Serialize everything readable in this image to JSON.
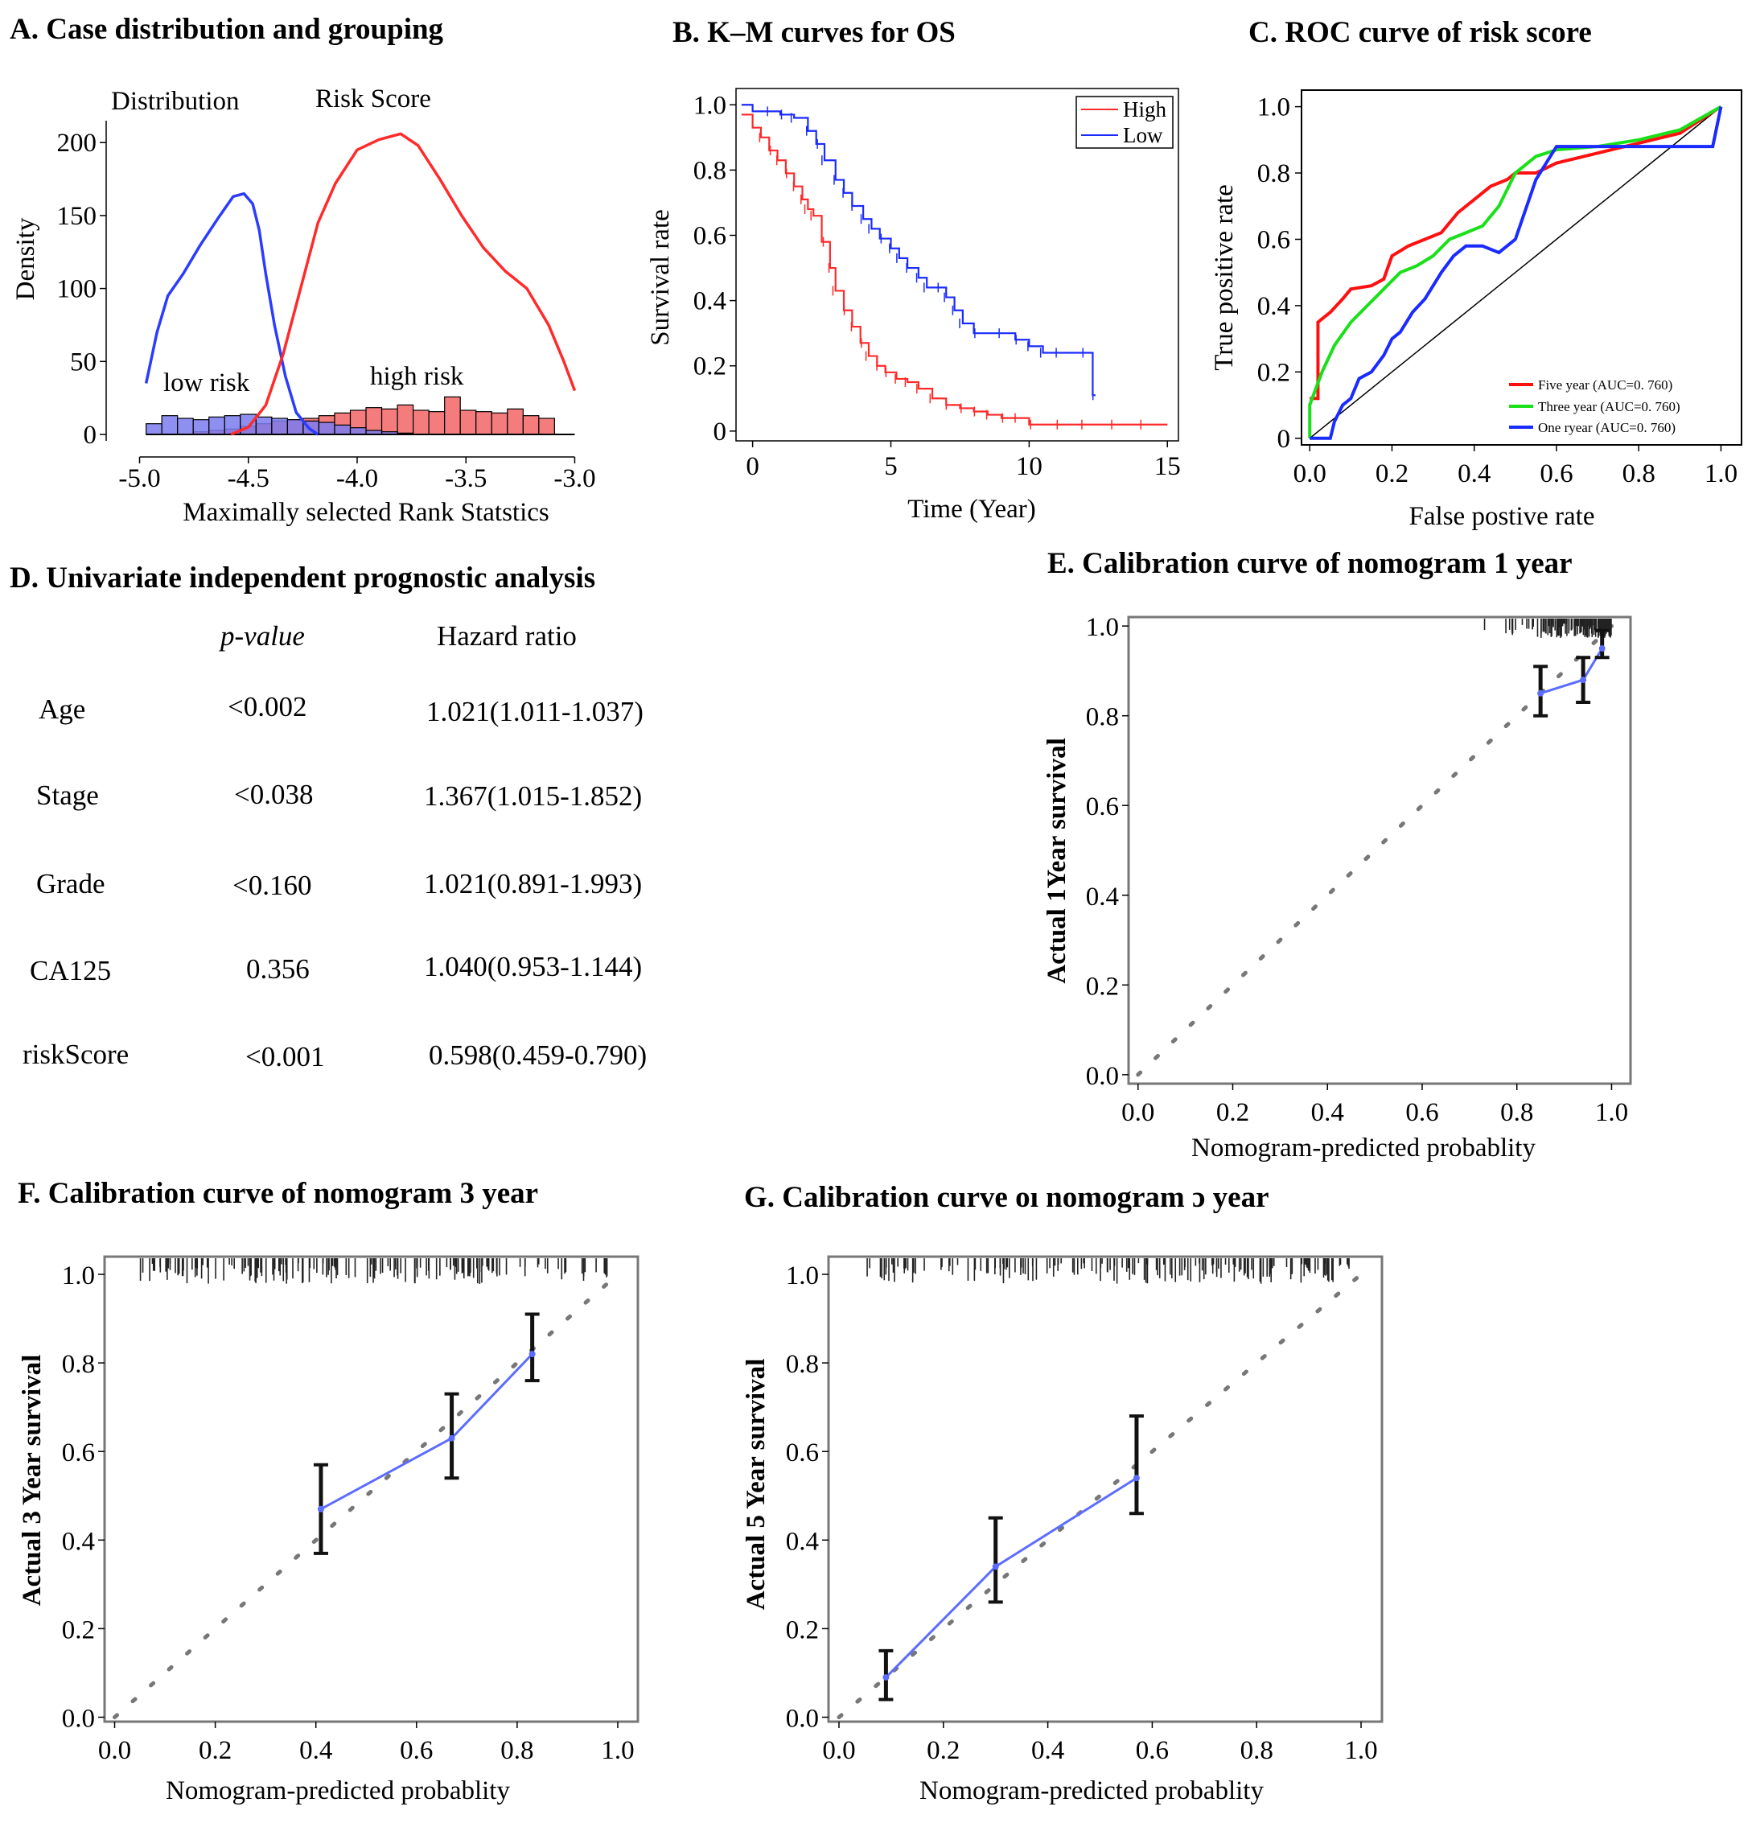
{
  "chart_data": [
    {
      "type": "area",
      "panel": "A",
      "title": "A. Case distribution and grouping",
      "subtitle_left": "Distribution",
      "subtitle_right": "Risk Score",
      "xlabel": "Maximally selected Rank Statstics",
      "ylabel": "Density",
      "xlim": [
        -5.05,
        -2.95
      ],
      "ylim": [
        0,
        215
      ],
      "xticks": [
        "-5.0",
        "-4.5",
        "-4.0",
        "-3.5",
        "-3.0"
      ],
      "xtick_values": [
        -5.0,
        -4.5,
        -4.0,
        -3.5,
        -3.0
      ],
      "yticks": [
        "0",
        "50",
        "100",
        "150",
        "200"
      ],
      "ytick_values": [
        0,
        50,
        100,
        150,
        200
      ],
      "annotations": [
        "low risk",
        "high risk"
      ],
      "series": [
        {
          "name": "low risk",
          "color": "#2b3cff",
          "x": [
            -4.97,
            -4.92,
            -4.87,
            -4.8,
            -4.72,
            -4.64,
            -4.57,
            -4.52,
            -4.48,
            -4.45,
            -4.42,
            -4.38,
            -4.33,
            -4.28,
            -4.22,
            -4.18
          ],
          "values": [
            35,
            70,
            95,
            110,
            130,
            148,
            163,
            165,
            158,
            140,
            110,
            75,
            40,
            15,
            4,
            0
          ]
        },
        {
          "name": "high risk",
          "color": "#ff2a2a",
          "x": [
            -4.58,
            -4.5,
            -4.42,
            -4.34,
            -4.26,
            -4.18,
            -4.1,
            -4.0,
            -3.9,
            -3.8,
            -3.72,
            -3.62,
            -3.52,
            -3.42,
            -3.32,
            -3.22,
            -3.12,
            -3.05,
            -3.0
          ],
          "values": [
            0,
            5,
            20,
            55,
            100,
            145,
            172,
            195,
            202,
            206,
            198,
            175,
            150,
            128,
            112,
            100,
            75,
            50,
            30
          ]
        }
      ],
      "histogram": {
        "bin_start": -4.97,
        "bin_width": 0.0722,
        "low_counts": [
          8,
          14,
          12,
          11,
          13,
          14,
          15,
          13,
          12,
          11,
          10,
          9,
          7,
          5,
          3,
          2,
          1,
          0,
          0,
          0,
          0,
          0,
          0,
          0,
          0,
          0
        ],
        "high_counts": [
          0,
          0,
          0,
          2,
          3,
          4,
          6,
          8,
          10,
          11,
          12,
          14,
          16,
          18,
          20,
          19,
          22,
          18,
          17,
          28,
          18,
          17,
          16,
          19,
          14,
          12
        ]
      }
    },
    {
      "type": "line",
      "panel": "B",
      "title": "B. K–M curves for OS",
      "xlabel": "Time (Year)",
      "ylabel": "Survival rate",
      "xlim": [
        -0.6,
        15.4
      ],
      "ylim": [
        -0.03,
        1.05
      ],
      "xticks": [
        "0",
        "5",
        "10",
        "15"
      ],
      "xtick_values": [
        0,
        5,
        10,
        15
      ],
      "yticks": [
        "0",
        "0.2",
        "0.4",
        "0.6",
        "0.8",
        "1.0"
      ],
      "ytick_values": [
        0,
        0.2,
        0.4,
        0.6,
        0.8,
        1.0
      ],
      "legend": [
        "High",
        "Low"
      ],
      "legend_position": "top-right",
      "series": [
        {
          "name": "High",
          "color": "#ff2a2a",
          "x": [
            -0.4,
            0.0,
            0.3,
            0.6,
            0.9,
            1.2,
            1.5,
            1.8,
            2.0,
            2.2,
            2.5,
            2.8,
            3.0,
            3.3,
            3.6,
            3.9,
            4.2,
            4.5,
            4.8,
            5.2,
            5.6,
            6.0,
            6.5,
            7.0,
            7.5,
            8.0,
            8.5,
            9.0,
            9.5,
            10.0,
            11.0,
            12.0,
            13.0,
            14.0,
            15.0
          ],
          "values": [
            0.97,
            0.93,
            0.9,
            0.86,
            0.83,
            0.79,
            0.75,
            0.71,
            0.68,
            0.66,
            0.58,
            0.5,
            0.43,
            0.37,
            0.32,
            0.27,
            0.23,
            0.2,
            0.18,
            0.16,
            0.15,
            0.13,
            0.1,
            0.08,
            0.07,
            0.06,
            0.05,
            0.04,
            0.04,
            0.02,
            0.02,
            0.02,
            0.02,
            0.02,
            0.02
          ]
        },
        {
          "name": "Low",
          "color": "#1a2bff",
          "x": [
            -0.4,
            0.0,
            0.5,
            1.0,
            1.5,
            2.0,
            2.3,
            2.6,
            3.0,
            3.3,
            3.6,
            4.0,
            4.3,
            4.6,
            5.0,
            5.3,
            5.6,
            6.0,
            6.3,
            6.7,
            7.0,
            7.3,
            7.6,
            8.0,
            9.0,
            9.5,
            10.0,
            10.5,
            11.0,
            12.0,
            12.3,
            12.4
          ],
          "values": [
            1.0,
            0.98,
            0.98,
            0.97,
            0.96,
            0.92,
            0.88,
            0.83,
            0.77,
            0.73,
            0.69,
            0.65,
            0.62,
            0.59,
            0.56,
            0.53,
            0.5,
            0.47,
            0.44,
            0.44,
            0.41,
            0.37,
            0.33,
            0.3,
            0.3,
            0.28,
            0.26,
            0.24,
            0.24,
            0.24,
            0.11,
            0.11
          ]
        }
      ]
    },
    {
      "type": "line",
      "panel": "C",
      "title": "C. ROC curve of risk score",
      "xlabel": "False postive rate",
      "ylabel": "True positive rate",
      "xlim": [
        -0.02,
        1.05
      ],
      "ylim": [
        -0.02,
        1.05
      ],
      "xticks": [
        "0.0",
        "0.2",
        "0.4",
        "0.6",
        "0.8",
        "1.0"
      ],
      "xtick_values": [
        0,
        0.2,
        0.4,
        0.6,
        0.8,
        1.0
      ],
      "yticks": [
        "0",
        "0.2",
        "0.4",
        "0.6",
        "0.8",
        "1.0"
      ],
      "ytick_values": [
        0,
        0.2,
        0.4,
        0.6,
        0.8,
        1.0
      ],
      "legend": [
        "Five year (AUC=0. 760)",
        "Three year (AUC=0. 760)",
        "One ryear (AUC=0. 760)"
      ],
      "legend_position": "bottom-right",
      "series": [
        {
          "name": "Five year (AUC=0. 760)",
          "color": "#ff1010",
          "x": [
            0.0,
            0.02,
            0.02,
            0.05,
            0.08,
            0.1,
            0.15,
            0.18,
            0.2,
            0.24,
            0.28,
            0.32,
            0.36,
            0.4,
            0.44,
            0.48,
            0.5,
            0.55,
            0.6,
            0.7,
            0.8,
            0.9,
            1.0
          ],
          "values": [
            0.12,
            0.12,
            0.35,
            0.38,
            0.42,
            0.45,
            0.46,
            0.48,
            0.55,
            0.58,
            0.6,
            0.62,
            0.68,
            0.72,
            0.76,
            0.78,
            0.8,
            0.8,
            0.83,
            0.86,
            0.89,
            0.92,
            1.0
          ]
        },
        {
          "name": "Three year (AUC=0. 760)",
          "color": "#19e019",
          "x": [
            0.0,
            0.0,
            0.03,
            0.06,
            0.1,
            0.14,
            0.18,
            0.22,
            0.26,
            0.3,
            0.34,
            0.38,
            0.42,
            0.46,
            0.5,
            0.55,
            0.6,
            0.7,
            0.8,
            0.9,
            1.0
          ],
          "values": [
            0.0,
            0.1,
            0.2,
            0.28,
            0.35,
            0.4,
            0.45,
            0.5,
            0.52,
            0.55,
            0.6,
            0.62,
            0.64,
            0.7,
            0.8,
            0.85,
            0.87,
            0.88,
            0.9,
            0.93,
            1.0
          ]
        },
        {
          "name": "One ryear (AUC=0. 760)",
          "color": "#1a2bff",
          "x": [
            0.0,
            0.05,
            0.06,
            0.08,
            0.1,
            0.12,
            0.15,
            0.18,
            0.2,
            0.22,
            0.25,
            0.28,
            0.3,
            0.32,
            0.35,
            0.38,
            0.42,
            0.46,
            0.5,
            0.55,
            0.6,
            0.7,
            0.8,
            0.9,
            0.98,
            1.0
          ],
          "values": [
            0.0,
            0.0,
            0.05,
            0.1,
            0.12,
            0.18,
            0.2,
            0.25,
            0.3,
            0.32,
            0.38,
            0.42,
            0.46,
            0.5,
            0.55,
            0.58,
            0.58,
            0.56,
            0.6,
            0.78,
            0.88,
            0.88,
            0.88,
            0.88,
            0.88,
            1.0
          ]
        }
      ],
      "reference_line": {
        "x": [
          0,
          1
        ],
        "values": [
          0,
          1
        ],
        "color": "#000000"
      }
    },
    {
      "type": "table",
      "panel": "D",
      "title": "D. Univariate independent prognostic analysis",
      "columns": [
        "p-value",
        "Hazard ratio"
      ],
      "rows": [
        {
          "variable": "Age",
          "p_value": "<0.002",
          "hazard_ratio": "1.021(1.011-1.037)"
        },
        {
          "variable": "Stage",
          "p_value": "<0.038",
          "hazard_ratio": "1.367(1.015-1.852)"
        },
        {
          "variable": "Grade",
          "p_value": "<0.160",
          "hazard_ratio": "1.021(0.891-1.993)"
        },
        {
          "variable": "CA125",
          "p_value": "0.356",
          "hazard_ratio": "1.040(0.953-1.144)"
        },
        {
          "variable": "riskScore",
          "p_value": "<0.001",
          "hazard_ratio": "0.598(0.459-0.790)"
        }
      ]
    },
    {
      "type": "line",
      "panel": "E",
      "title": "E. Calibration curve of nomogram 1 year",
      "xlabel": "Nomogram-predicted probablity",
      "ylabel": "Actual 1Year survival",
      "xlim": [
        -0.02,
        1.04
      ],
      "ylim": [
        -0.02,
        1.02
      ],
      "xticks": [
        "0.0",
        "0.2",
        "0.4",
        "0.6",
        "0.8",
        "1.0"
      ],
      "xtick_values": [
        0,
        0.2,
        0.4,
        0.6,
        0.8,
        1.0
      ],
      "yticks": [
        "0.0",
        "0.2",
        "0.4",
        "0.6",
        "0.8",
        "1.0"
      ],
      "ytick_values": [
        0,
        0.2,
        0.4,
        0.6,
        0.8,
        1.0
      ],
      "series": [
        {
          "name": "calibration",
          "color": "#5b6cff",
          "x": [
            0.85,
            0.94,
            0.98
          ],
          "values": [
            0.85,
            0.88,
            0.95
          ],
          "ci_low": [
            0.8,
            0.83,
            0.93
          ],
          "ci_high": [
            0.91,
            0.93,
            0.99
          ]
        }
      ],
      "reference_line": {
        "x": [
          0,
          1
        ],
        "values": [
          0,
          1
        ],
        "style": "dotted"
      },
      "rug_range": [
        0.7,
        1.0
      ]
    },
    {
      "type": "line",
      "panel": "F",
      "title": "F.  Calibration curve of nomogram 3 year",
      "xlabel": "Nomogram-predicted probablity",
      "ylabel": "Actual 3 Year survival",
      "xlim": [
        -0.02,
        1.04
      ],
      "ylim": [
        -0.01,
        1.04
      ],
      "xticks": [
        "0.0",
        "0.2",
        "0.4",
        "0.6",
        "0.8",
        "1.0"
      ],
      "xtick_values": [
        0,
        0.2,
        0.4,
        0.6,
        0.8,
        1.0
      ],
      "yticks": [
        "0.0",
        "0.2",
        "0.4",
        "0.6",
        "0.8",
        "1.0"
      ],
      "ytick_values": [
        0,
        0.2,
        0.4,
        0.6,
        0.8,
        1.0
      ],
      "series": [
        {
          "name": "calibration",
          "color": "#5b6cff",
          "x": [
            0.41,
            0.67,
            0.83
          ],
          "values": [
            0.47,
            0.63,
            0.82
          ],
          "ci_low": [
            0.37,
            0.54,
            0.76
          ],
          "ci_high": [
            0.57,
            0.73,
            0.91
          ]
        }
      ],
      "reference_line": {
        "x": [
          0,
          1
        ],
        "values": [
          0,
          1
        ],
        "style": "dotted"
      },
      "rug_range": [
        0.0,
        1.0
      ]
    },
    {
      "type": "line",
      "panel": "G",
      "title": "G.  Calibration curve oı nomogram ɔ year",
      "xlabel": "Nomogram-predicted probablity",
      "ylabel": "Actual 5 Year survival",
      "xlim": [
        -0.02,
        1.04
      ],
      "ylim": [
        -0.01,
        1.04
      ],
      "xticks": [
        "0.0",
        "0.2",
        "0.4",
        "0.6",
        "0.8",
        "1.0"
      ],
      "xtick_values": [
        0,
        0.2,
        0.4,
        0.6,
        0.8,
        1.0
      ],
      "yticks": [
        "0.0",
        "0.2",
        "0.4",
        "0.6",
        "0.8",
        "1.0"
      ],
      "ytick_values": [
        0,
        0.2,
        0.4,
        0.6,
        0.8,
        1.0
      ],
      "series": [
        {
          "name": "calibration",
          "color": "#5b6cff",
          "x": [
            0.09,
            0.3,
            0.57
          ],
          "values": [
            0.09,
            0.34,
            0.54
          ],
          "ci_low": [
            0.04,
            0.26,
            0.46
          ],
          "ci_high": [
            0.15,
            0.45,
            0.68
          ]
        }
      ],
      "reference_line": {
        "x": [
          0,
          1
        ],
        "values": [
          0,
          1
        ],
        "style": "dotted"
      },
      "rug_range": [
        0.0,
        1.0
      ]
    }
  ]
}
